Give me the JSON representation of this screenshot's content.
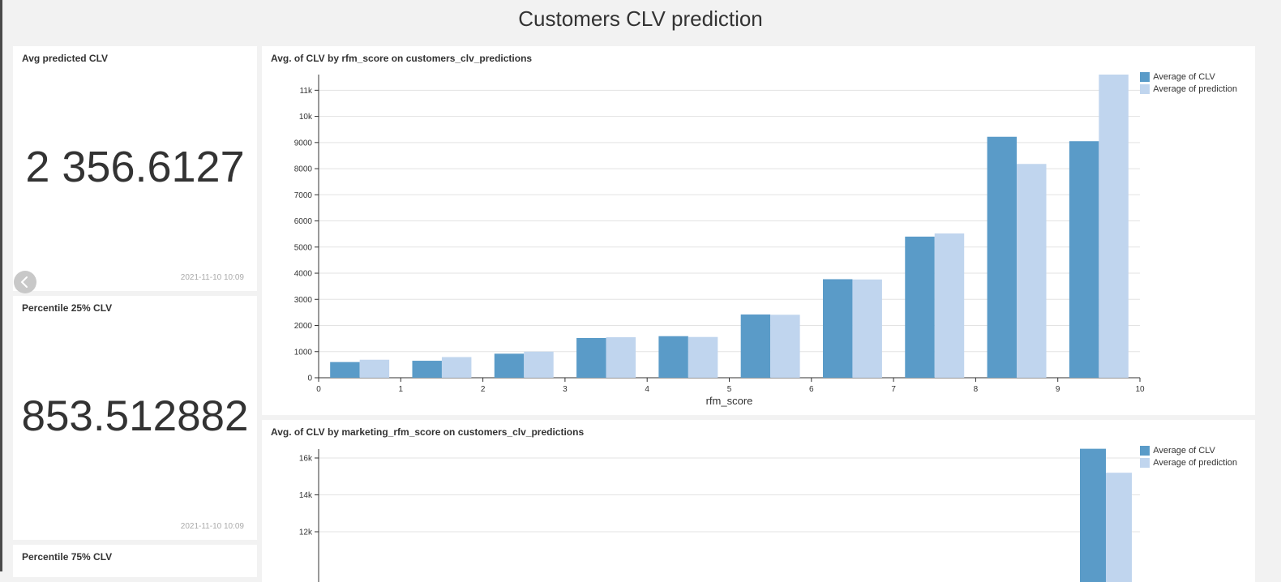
{
  "page": {
    "title": "Customers CLV prediction"
  },
  "kpis": [
    {
      "title": "Avg predicted CLV",
      "value": "2 356.6127",
      "timestamp": "2021-11-10 10:09"
    },
    {
      "title": "Percentile 25% CLV",
      "value": "853.512882",
      "timestamp": "2021-11-10 10:09"
    },
    {
      "title": "Percentile 75% CLV"
    }
  ],
  "colors": {
    "clv": "#5a9bc8",
    "prediction": "#c0d5ee"
  },
  "chart_data": [
    {
      "type": "bar",
      "title": "Avg. of CLV by rfm_score on customers_clv_predictions",
      "xlabel": "rfm_score",
      "ylabel": "",
      "x_ticks": [
        "0",
        "1",
        "2",
        "3",
        "4",
        "5",
        "6",
        "7",
        "8",
        "9",
        "10"
      ],
      "y_ticks": [
        "0",
        "1000",
        "2000",
        "3000",
        "4000",
        "5000",
        "6000",
        "7000",
        "8000",
        "9000",
        "10k",
        "11k"
      ],
      "ylim": [
        0,
        11600
      ],
      "x": [
        0,
        1,
        2,
        3,
        4,
        5,
        6,
        7,
        8,
        9
      ],
      "series": [
        {
          "name": "Average of CLV",
          "values": [
            600,
            650,
            920,
            1520,
            1590,
            2420,
            3770,
            5400,
            9220,
            9050
          ]
        },
        {
          "name": "Average of prediction",
          "values": [
            690,
            790,
            1000,
            1550,
            1560,
            2410,
            3760,
            5520,
            8180,
            11600
          ]
        }
      ],
      "legend": "top-right"
    },
    {
      "type": "bar",
      "title": "Avg. of CLV by marketing_rfm_score on customers_clv_predictions",
      "xlabel": "",
      "ylabel": "",
      "y_ticks": [
        "12k",
        "14k",
        "16k"
      ],
      "visible_y_range": [
        10000,
        16500
      ],
      "series": [
        {
          "name": "Average of CLV",
          "values": [
            16500
          ]
        },
        {
          "name": "Average of prediction",
          "values": [
            15200
          ]
        }
      ],
      "legend": "top-right"
    }
  ]
}
